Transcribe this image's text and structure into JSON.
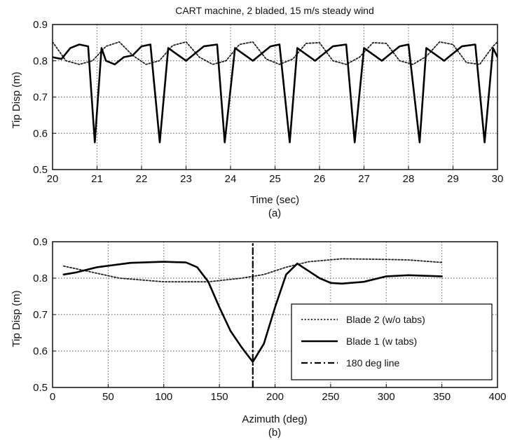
{
  "chart_data": [
    {
      "type": "line",
      "title": "CART machine, 2 bladed, 15 m/s steady wind",
      "xlabel": "Time (sec)",
      "ylabel": "Tip Disp (m)",
      "caption": "(a)",
      "xlim": [
        20,
        30
      ],
      "ylim": [
        0.5,
        0.9
      ],
      "xticks": [
        "20",
        "21",
        "22",
        "23",
        "24",
        "25",
        "26",
        "27",
        "28",
        "29",
        "30"
      ],
      "yticks": [
        "0.5",
        "0.6",
        "0.7",
        "0.8",
        "0.9"
      ],
      "grid": true,
      "period_sec": 1.46,
      "blade1_dip_times": [
        20.95,
        22.41,
        23.87,
        25.33,
        26.79,
        28.25,
        29.71
      ],
      "series": [
        {
          "key": "blade2",
          "style": "dotted",
          "x": [
            20.0,
            20.3,
            20.6,
            20.9,
            21.2,
            21.5,
            21.8,
            22.1,
            22.4,
            22.7,
            23.0,
            23.3,
            23.6,
            23.9,
            24.2,
            24.5,
            24.8,
            25.1,
            25.4,
            25.7,
            26.0,
            26.3,
            26.6,
            26.9,
            27.2,
            27.5,
            27.8,
            28.1,
            28.4,
            28.7,
            29.0,
            29.3,
            29.6,
            29.9,
            30.0
          ],
          "y": [
            0.852,
            0.8,
            0.79,
            0.8,
            0.84,
            0.852,
            0.815,
            0.79,
            0.8,
            0.842,
            0.852,
            0.81,
            0.79,
            0.8,
            0.845,
            0.852,
            0.805,
            0.79,
            0.805,
            0.848,
            0.85,
            0.8,
            0.79,
            0.81,
            0.85,
            0.848,
            0.8,
            0.79,
            0.812,
            0.852,
            0.845,
            0.795,
            0.79,
            0.84,
            0.852
          ]
        },
        {
          "key": "blade1",
          "style": "solid",
          "x": [
            20.0,
            20.2,
            20.4,
            20.6,
            20.8,
            20.95,
            21.1,
            21.2,
            21.4,
            21.6,
            21.8,
            22.0,
            22.2,
            22.41,
            22.6,
            23.0,
            23.4,
            23.7,
            23.87,
            24.1,
            24.5,
            24.9,
            25.1,
            25.33,
            25.5,
            25.9,
            26.3,
            26.6,
            26.79,
            27.0,
            27.4,
            27.8,
            28.0,
            28.25,
            28.4,
            28.8,
            29.2,
            29.5,
            29.71,
            29.9,
            30.0
          ],
          "y": [
            0.81,
            0.805,
            0.835,
            0.845,
            0.84,
            0.575,
            0.835,
            0.8,
            0.79,
            0.81,
            0.815,
            0.84,
            0.845,
            0.575,
            0.835,
            0.8,
            0.84,
            0.845,
            0.575,
            0.835,
            0.8,
            0.84,
            0.845,
            0.575,
            0.835,
            0.8,
            0.84,
            0.845,
            0.575,
            0.835,
            0.8,
            0.84,
            0.845,
            0.575,
            0.835,
            0.8,
            0.84,
            0.845,
            0.575,
            0.835,
            0.81
          ]
        }
      ]
    },
    {
      "type": "line",
      "xlabel": "Azimuth (deg)",
      "ylabel": "Tip Disp (m)",
      "caption": "(b)",
      "xlim": [
        0,
        400
      ],
      "ylim": [
        0.5,
        0.9
      ],
      "xticks": [
        "0",
        "50",
        "100",
        "150",
        "200",
        "250",
        "300",
        "350",
        "400"
      ],
      "yticks": [
        "0.5",
        "0.6",
        "0.7",
        "0.8",
        "0.9"
      ],
      "grid": true,
      "legend_position": "lower-right",
      "series": [
        {
          "key": "blade2",
          "name": "Blade 2 (w/o tabs)",
          "style": "dotted",
          "x": [
            10,
            30,
            60,
            100,
            140,
            170,
            190,
            210,
            230,
            260,
            290,
            320,
            350
          ],
          "y": [
            0.833,
            0.82,
            0.8,
            0.79,
            0.79,
            0.8,
            0.81,
            0.83,
            0.845,
            0.853,
            0.852,
            0.85,
            0.843
          ]
        },
        {
          "key": "blade1",
          "name": "Blade 1 (w tabs)",
          "style": "solid",
          "x": [
            10,
            20,
            40,
            70,
            100,
            120,
            130,
            140,
            150,
            160,
            170,
            180,
            190,
            200,
            210,
            220,
            230,
            240,
            250,
            260,
            280,
            300,
            320,
            350
          ],
          "y": [
            0.81,
            0.815,
            0.83,
            0.842,
            0.845,
            0.843,
            0.83,
            0.79,
            0.72,
            0.655,
            0.61,
            0.57,
            0.62,
            0.72,
            0.81,
            0.84,
            0.82,
            0.8,
            0.787,
            0.785,
            0.79,
            0.805,
            0.808,
            0.805
          ]
        },
        {
          "key": "line180",
          "name": "180 deg line",
          "style": "dashdot",
          "x": [
            180,
            180
          ],
          "y": [
            0.5,
            0.9
          ]
        }
      ]
    }
  ]
}
